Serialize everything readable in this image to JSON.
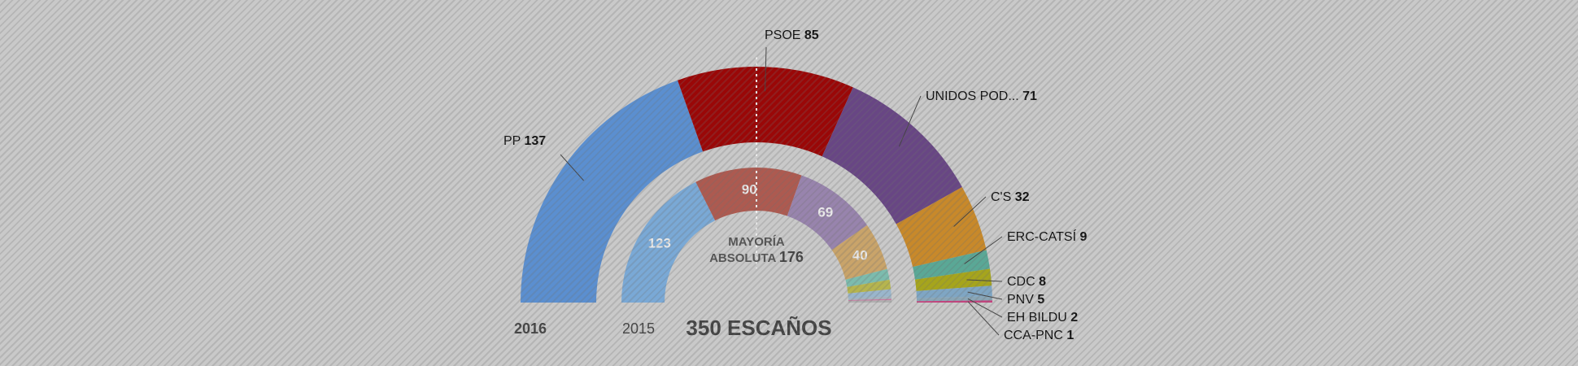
{
  "chart_data": {
    "type": "parliament-semicircle",
    "total_label": "350 ESCAÑOS",
    "majority": {
      "label": "MAYORÍA ABSOLUTA",
      "value": 176
    },
    "rings": [
      {
        "name": "2016",
        "segments": [
          {
            "party": "PP",
            "seats": 137,
            "color": "#5b8fd0"
          },
          {
            "party": "PSOE",
            "seats": 85,
            "color": "#9a0707"
          },
          {
            "party": "UNIDOS POD...",
            "seats": 71,
            "color": "#684684"
          },
          {
            "party": "C'S",
            "seats": 32,
            "color": "#c8892a"
          },
          {
            "party": "ERC-CATSÍ",
            "seats": 9,
            "color": "#5aa896"
          },
          {
            "party": "CDC",
            "seats": 8,
            "color": "#a6a51c"
          },
          {
            "party": "PNV",
            "seats": 5,
            "color": "#7fa6c4"
          },
          {
            "party": "EH BILDU",
            "seats": 2,
            "color": "#8aa6b6"
          },
          {
            "party": "CCA-PNC",
            "seats": 1,
            "color": "#c4447e"
          }
        ]
      },
      {
        "name": "2015",
        "segments": [
          {
            "seats": 123,
            "color": "#7aa9d6"
          },
          {
            "seats": 90,
            "color": "#ad5a50"
          },
          {
            "seats": 69,
            "color": "#9884ad"
          },
          {
            "seats": 40,
            "color": "#c9a46a"
          },
          {
            "seats": 9,
            "color": "#7cbcae"
          },
          {
            "seats": 8,
            "color": "#b6b54e"
          },
          {
            "seats": 6,
            "color": "#9ab6cc"
          },
          {
            "seats": 2,
            "color": "#a4b4bf"
          },
          {
            "seats": 1,
            "color": "#c87aa0"
          },
          {
            "seats": 2,
            "color": "#b0b0b0"
          }
        ]
      }
    ]
  }
}
